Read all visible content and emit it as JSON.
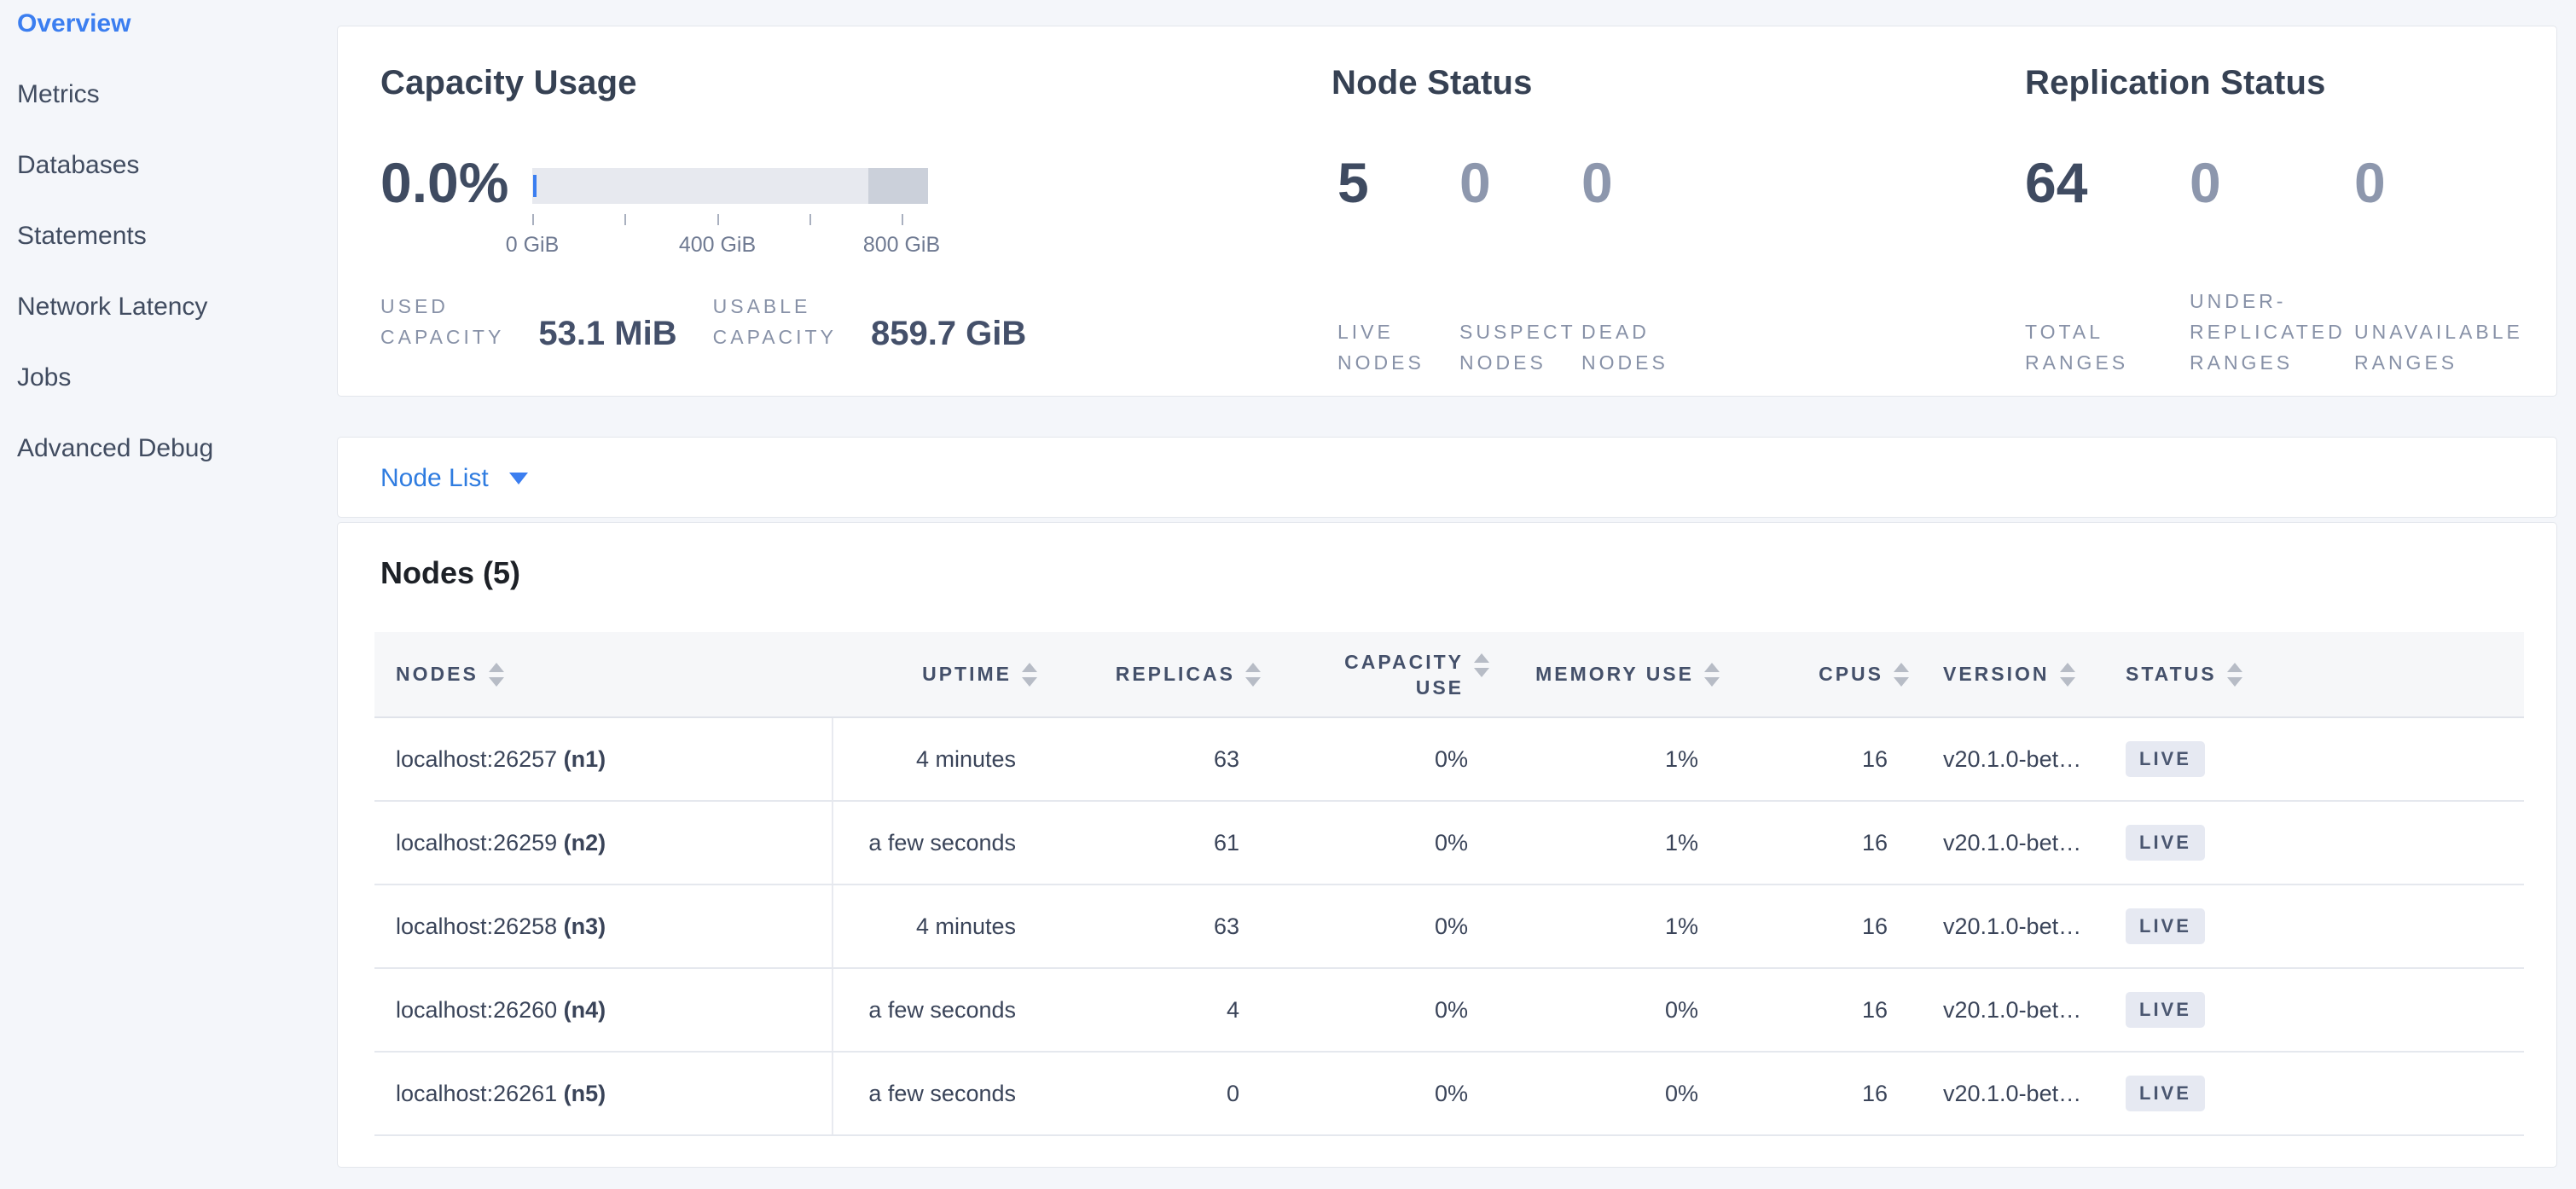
{
  "colors": {
    "accent_blue": "#3b7ef0",
    "badge_bg": "#e6e9f2",
    "badge_text": "#4a5670"
  },
  "sidebar": {
    "items": [
      {
        "label": "Overview",
        "active": true
      },
      {
        "label": "Metrics",
        "active": false
      },
      {
        "label": "Databases",
        "active": false
      },
      {
        "label": "Statements",
        "active": false
      },
      {
        "label": "Network Latency",
        "active": false
      },
      {
        "label": "Jobs",
        "active": false
      },
      {
        "label": "Advanced Debug",
        "active": false
      }
    ]
  },
  "summary": {
    "capacity": {
      "title": "Capacity Usage",
      "percent": "0.0%",
      "axis_labels": [
        "0 GiB",
        "400 GiB",
        "800 GiB"
      ],
      "bar": {
        "usable_segment_pct": 85,
        "reserved_segment_pct": 15,
        "used_marker_pct": 0
      },
      "stats": [
        {
          "label": "USED\nCAPACITY",
          "value": "53.1 MiB"
        },
        {
          "label": "USABLE\nCAPACITY",
          "value": "859.7 GiB"
        }
      ]
    },
    "node_status": {
      "title": "Node Status",
      "metrics": [
        {
          "value": "5",
          "label": "LIVE\nNODES",
          "muted": false
        },
        {
          "value": "0",
          "label": "SUSPECT\nNODES",
          "muted": true
        },
        {
          "value": "0",
          "label": "DEAD\nNODES",
          "muted": true
        }
      ]
    },
    "replication": {
      "title": "Replication Status",
      "metrics": [
        {
          "value": "64",
          "label": "TOTAL\nRANGES",
          "muted": false
        },
        {
          "value": "0",
          "label": "UNDER-\nREPLICATED\nRANGES",
          "muted": true
        },
        {
          "value": "0",
          "label": "UNAVAILABLE\nRANGES",
          "muted": true
        }
      ]
    }
  },
  "node_list_dropdown": {
    "label": "Node List"
  },
  "nodes_table": {
    "heading": "Nodes (5)",
    "columns": [
      {
        "key": "address",
        "label": "NODES",
        "align": "left"
      },
      {
        "key": "uptime",
        "label": "UPTIME",
        "align": "right"
      },
      {
        "key": "replicas",
        "label": "REPLICAS",
        "align": "right"
      },
      {
        "key": "capacity_use",
        "label": "CAPACITY USE",
        "align": "right",
        "wrap": true
      },
      {
        "key": "memory_use",
        "label": "MEMORY USE",
        "align": "right"
      },
      {
        "key": "cpus",
        "label": "CPUS",
        "align": "right"
      },
      {
        "key": "version",
        "label": "VERSION",
        "align": "left"
      },
      {
        "key": "status",
        "label": "STATUS",
        "align": "left"
      }
    ],
    "rows": [
      {
        "address": "localhost:26257",
        "node_id": "(n1)",
        "uptime": "4 minutes",
        "replicas": "63",
        "capacity_use": "0%",
        "memory_use": "1%",
        "cpus": "16",
        "version": "v20.1.0-bet…",
        "status": "LIVE"
      },
      {
        "address": "localhost:26259",
        "node_id": "(n2)",
        "uptime": "a few seconds",
        "replicas": "61",
        "capacity_use": "0%",
        "memory_use": "1%",
        "cpus": "16",
        "version": "v20.1.0-bet…",
        "status": "LIVE"
      },
      {
        "address": "localhost:26258",
        "node_id": "(n3)",
        "uptime": "4 minutes",
        "replicas": "63",
        "capacity_use": "0%",
        "memory_use": "1%",
        "cpus": "16",
        "version": "v20.1.0-bet…",
        "status": "LIVE"
      },
      {
        "address": "localhost:26260",
        "node_id": "(n4)",
        "uptime": "a few seconds",
        "replicas": "4",
        "capacity_use": "0%",
        "memory_use": "0%",
        "cpus": "16",
        "version": "v20.1.0-bet…",
        "status": "LIVE"
      },
      {
        "address": "localhost:26261",
        "node_id": "(n5)",
        "uptime": "a few seconds",
        "replicas": "0",
        "capacity_use": "0%",
        "memory_use": "0%",
        "cpus": "16",
        "version": "v20.1.0-bet…",
        "status": "LIVE"
      }
    ]
  }
}
